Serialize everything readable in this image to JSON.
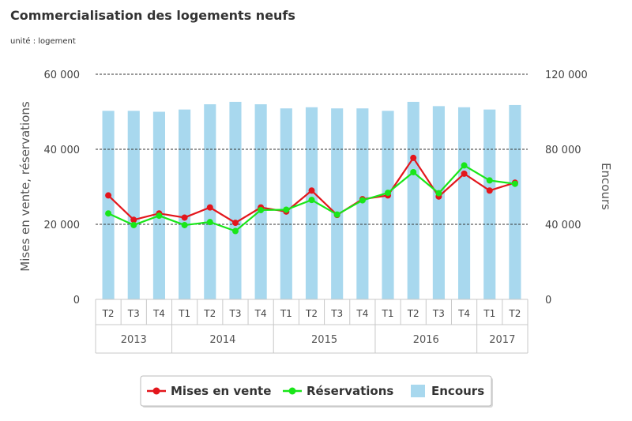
{
  "chart_data": {
    "type": "bar+line",
    "title": "Commercialisation des logements neufs",
    "subtitle": "unité : logement",
    "ylabel_left": "Mises en vente, réservations",
    "ylabel_right": "Encours",
    "ylim_left": [
      0,
      60000
    ],
    "ylim_right": [
      0,
      120000
    ],
    "yticks_left": [
      "0",
      "20 000",
      "40 000",
      "60 000"
    ],
    "yticks_right": [
      "0",
      "40 000",
      "80 000",
      "120 000"
    ],
    "categories": [
      "T2",
      "T3",
      "T4",
      "T1",
      "T2",
      "T3",
      "T4",
      "T1",
      "T2",
      "T3",
      "T4",
      "T1",
      "T2",
      "T3",
      "T4",
      "T1",
      "T2"
    ],
    "year_groups": [
      {
        "label": "2013",
        "count": 3
      },
      {
        "label": "2014",
        "count": 4
      },
      {
        "label": "2015",
        "count": 4
      },
      {
        "label": "2016",
        "count": 4
      },
      {
        "label": "2017",
        "count": 2
      }
    ],
    "series": [
      {
        "name": "Encours",
        "type": "bar",
        "axis": "right",
        "color": "#a8d8ee",
        "values": [
          100500,
          100500,
          100000,
          101200,
          104000,
          105300,
          104000,
          101800,
          102400,
          101800,
          101800,
          100500,
          105300,
          103000,
          102400,
          101200,
          103600
        ]
      },
      {
        "name": "Mises en vente",
        "type": "line",
        "axis": "left",
        "color": "#e3161c",
        "values": [
          27700,
          21200,
          22900,
          21800,
          24500,
          20400,
          24500,
          23400,
          29000,
          22500,
          26700,
          27700,
          37700,
          27400,
          33500,
          29000,
          31100
        ]
      },
      {
        "name": "Réservations",
        "type": "line",
        "axis": "left",
        "color": "#19e619",
        "values": [
          22900,
          19800,
          22300,
          19800,
          20600,
          18200,
          23800,
          23900,
          26500,
          22600,
          26400,
          28400,
          33900,
          28300,
          35700,
          31700,
          30800
        ]
      }
    ],
    "legend_order": [
      "Mises en vente",
      "Réservations",
      "Encours"
    ],
    "legend": "bottom-center",
    "grid": "dashed-horizontal"
  }
}
